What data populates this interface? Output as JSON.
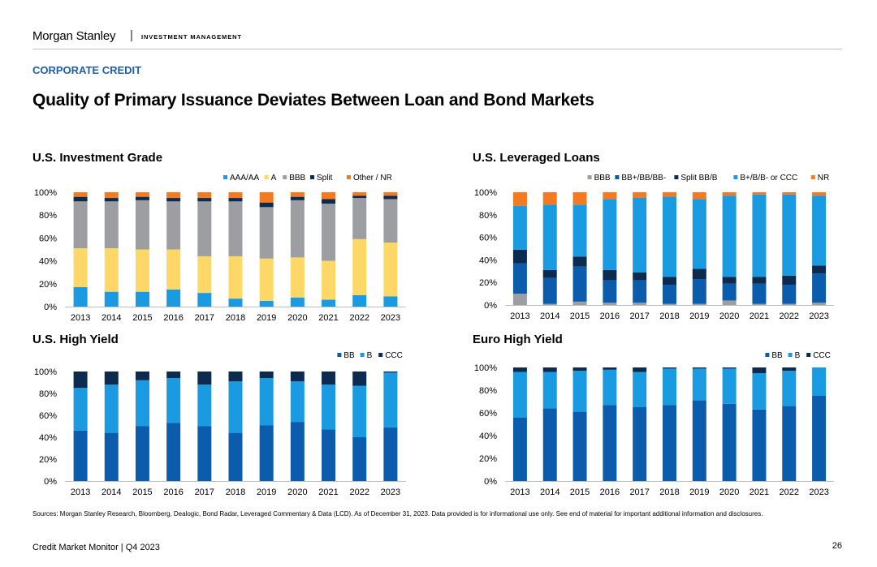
{
  "header": {
    "brand": "Morgan Stanley",
    "separator": "|",
    "unit": "INVESTMENT MANAGEMENT"
  },
  "section_label": "CORPORATE CREDIT",
  "page_title": "Quality of Primary Issuance Deviates Between Loan and Bond Markets",
  "colors": {
    "dark_navy": "#0d2b4f",
    "blue": "#0b5cad",
    "light_blue": "#1a9ae0",
    "gray": "#9c9ea1",
    "yellow": "#fdd867",
    "orange": "#f4791f"
  },
  "chart_data": [
    {
      "id": "us-investment-grade",
      "type": "bar",
      "stacked": true,
      "title": "U.S. Investment Grade",
      "categories": [
        "2013",
        "2014",
        "2015",
        "2016",
        "2017",
        "2018",
        "2019",
        "2020",
        "2021",
        "2022",
        "2023"
      ],
      "y_ticks": [
        "0%",
        "20%",
        "40%",
        "60%",
        "80%",
        "100%"
      ],
      "ylim": [
        0,
        100
      ],
      "legend_position": "top-right",
      "series": [
        {
          "name": "AAA/AA",
          "color": "#1a9ae0",
          "values": [
            17,
            13,
            13,
            15,
            12,
            7,
            5,
            8,
            6,
            10,
            9
          ]
        },
        {
          "name": "A",
          "color": "#fdd867",
          "values": [
            34,
            38,
            37,
            35,
            32,
            37,
            37,
            35,
            34,
            49,
            47
          ]
        },
        {
          "name": "BBB",
          "color": "#9c9ea1",
          "values": [
            41,
            41,
            43,
            42,
            48,
            48,
            45,
            50,
            50,
            36,
            38
          ]
        },
        {
          "name": "Split",
          "color": "#0d2b4f",
          "values": [
            4,
            3,
            3,
            3,
            3,
            3,
            4,
            3,
            4,
            2,
            3
          ]
        },
        {
          "name": "Other / NR",
          "color": "#f4791f",
          "values": [
            4,
            5,
            4,
            5,
            5,
            5,
            9,
            4,
            6,
            3,
            3
          ]
        }
      ]
    },
    {
      "id": "us-leveraged-loans",
      "type": "bar",
      "stacked": true,
      "title": "U.S. Leveraged Loans",
      "categories": [
        "2013",
        "2014",
        "2015",
        "2016",
        "2017",
        "2018",
        "2019",
        "2020",
        "2021",
        "2022",
        "2023"
      ],
      "y_ticks": [
        "0%",
        "20%",
        "40%",
        "60%",
        "80%",
        "100%"
      ],
      "ylim": [
        0,
        100
      ],
      "legend_position": "top-right",
      "series": [
        {
          "name": "BBB",
          "color": "#9c9ea1",
          "values": [
            10,
            1,
            3,
            2,
            2,
            1,
            1,
            4,
            1,
            1,
            2
          ]
        },
        {
          "name": "BB+/BB/BB-",
          "color": "#0b5cad",
          "values": [
            27,
            23,
            31,
            20,
            20,
            17,
            22,
            15,
            18,
            17,
            26
          ]
        },
        {
          "name": "Split BB/B",
          "color": "#0d2b4f",
          "values": [
            12,
            7,
            9,
            9,
            7,
            7,
            9,
            6,
            6,
            8,
            7
          ]
        },
        {
          "name": "B+/B/B- or CCC",
          "color": "#1a9ae0",
          "values": [
            39,
            58,
            46,
            63,
            66,
            71,
            62,
            72,
            73,
            72,
            62
          ]
        },
        {
          "name": "NR",
          "color": "#f4791f",
          "values": [
            12,
            11,
            11,
            6,
            5,
            4,
            6,
            3,
            2,
            2,
            3
          ]
        }
      ]
    },
    {
      "id": "us-high-yield",
      "type": "bar",
      "stacked": true,
      "title": "U.S. High Yield",
      "categories": [
        "2013",
        "2014",
        "2015",
        "2016",
        "2017",
        "2018",
        "2019",
        "2020",
        "2021",
        "2022",
        "2023"
      ],
      "y_ticks": [
        "0%",
        "20%",
        "40%",
        "60%",
        "80%",
        "100%"
      ],
      "ylim": [
        0,
        100
      ],
      "legend_position": "top-right",
      "series": [
        {
          "name": "BB",
          "color": "#0b5cad",
          "values": [
            46,
            44,
            50,
            53,
            50,
            44,
            51,
            54,
            47,
            40,
            49
          ]
        },
        {
          "name": "B",
          "color": "#1a9ae0",
          "values": [
            39,
            44,
            42,
            41,
            38,
            47,
            43,
            37,
            41,
            47,
            50
          ]
        },
        {
          "name": "CCC",
          "color": "#0d2b4f",
          "values": [
            15,
            12,
            8,
            6,
            12,
            9,
            6,
            9,
            12,
            13,
            1
          ]
        }
      ]
    },
    {
      "id": "euro-high-yield",
      "type": "bar",
      "stacked": true,
      "title": "Euro High Yield",
      "categories": [
        "2013",
        "2014",
        "2015",
        "2016",
        "2017",
        "2018",
        "2019",
        "2020",
        "2021",
        "2022",
        "2023"
      ],
      "y_ticks": [
        "0%",
        "20%",
        "40%",
        "60%",
        "80%",
        "100%"
      ],
      "ylim": [
        0,
        100
      ],
      "legend_position": "top-right",
      "series": [
        {
          "name": "BB",
          "color": "#0b5cad",
          "values": [
            56,
            64,
            61,
            67,
            65,
            67,
            71,
            68,
            63,
            66,
            75
          ]
        },
        {
          "name": "B",
          "color": "#1a9ae0",
          "values": [
            40,
            32,
            36,
            31,
            31,
            32,
            28,
            31,
            32,
            31,
            25
          ]
        },
        {
          "name": "CCC",
          "color": "#0d2b4f",
          "values": [
            4,
            4,
            3,
            2,
            4,
            1,
            1,
            1,
            5,
            3,
            0
          ]
        }
      ]
    }
  ],
  "sources": "Sources: Morgan Stanley Research, Bloomberg, Dealogic, Bond Radar, Leveraged Commentary & Data (LCD). As of December 31, 2023. Data provided is for informational use only. See end of material for important additional information and disclosures.",
  "footer": {
    "left": "Credit Market Monitor | Q4 2023",
    "page_number": "26"
  }
}
